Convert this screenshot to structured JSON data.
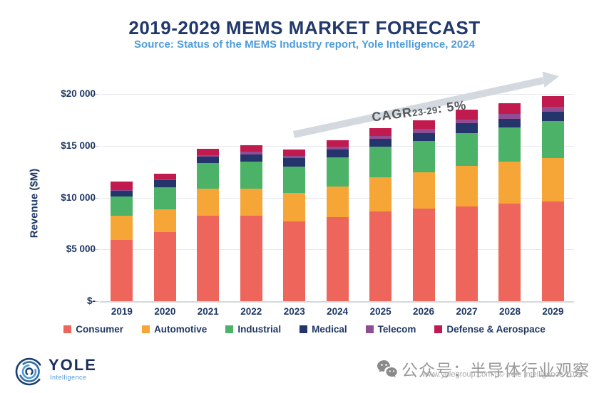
{
  "header": {
    "title": "2019-2029 MEMS MARKET FORECAST",
    "subtitle": "Source: Status of the MEMS Industry report, Yole Intelligence, 2024"
  },
  "chart_data": {
    "type": "bar",
    "stacked": true,
    "title": "2019-2029 MEMS MARKET FORECAST",
    "xlabel": "",
    "ylabel": "Revenue ($M)",
    "ylim": [
      0,
      20000
    ],
    "y_ticks": [
      "$-",
      "$5 000",
      "$10 000",
      "$15 000",
      "$20 000"
    ],
    "grid": "horizontal",
    "legend_position": "bottom",
    "categories": [
      "2019",
      "2020",
      "2021",
      "2022",
      "2023",
      "2024",
      "2025",
      "2026",
      "2027",
      "2028",
      "2029"
    ],
    "series": [
      {
        "name": "Consumer",
        "color": "#EE655C",
        "values": [
          5950,
          6700,
          8250,
          8250,
          7700,
          8150,
          8700,
          8925,
          9150,
          9450,
          9600
        ]
      },
      {
        "name": "Automotive",
        "color": "#F6A637",
        "values": [
          2300,
          2150,
          2600,
          2650,
          2750,
          2925,
          3275,
          3500,
          3900,
          4050,
          4200
        ]
      },
      {
        "name": "Industrial",
        "color": "#4BB268",
        "values": [
          1850,
          2150,
          2500,
          2600,
          2575,
          2825,
          2975,
          3050,
          3200,
          3275,
          3600
        ]
      },
      {
        "name": "Medical",
        "color": "#24356B",
        "values": [
          550,
          675,
          625,
          700,
          825,
          775,
          750,
          775,
          925,
          850,
          875
        ]
      },
      {
        "name": "Telecom",
        "color": "#8F4D93",
        "values": [
          100,
          75,
          150,
          225,
          175,
          225,
          275,
          375,
          400,
          450,
          525
        ]
      },
      {
        "name": "Defense & Aerospace",
        "color": "#C11A4E",
        "values": [
          820,
          575,
          600,
          650,
          650,
          675,
          750,
          875,
          925,
          1050,
          1000
        ]
      }
    ],
    "totals": [
      11570,
      12325,
      14725,
      15075,
      14675,
      15575,
      16725,
      17500,
      18500,
      19125,
      19800
    ],
    "annotation": {
      "prefix": "CAGR",
      "sub": "23-29",
      "suffix": ": 5%",
      "arrow_color": "#D3D9DF",
      "text_color": "#54575C"
    }
  },
  "footer": {
    "logo_name": "YOLE",
    "logo_sub": "Intelligence",
    "watermark_cn": "公众号：半导体行业观察",
    "watermark_url": "www.yolegroup.com | © Yole Intelligence 2024"
  },
  "colors": {
    "title_navy": "#21386B",
    "subtitle_blue": "#4E9CD9",
    "axis_text_navy": "#1F3864",
    "gridline": "#E6E9ED",
    "watermark_gray": "#9A9A9A"
  }
}
